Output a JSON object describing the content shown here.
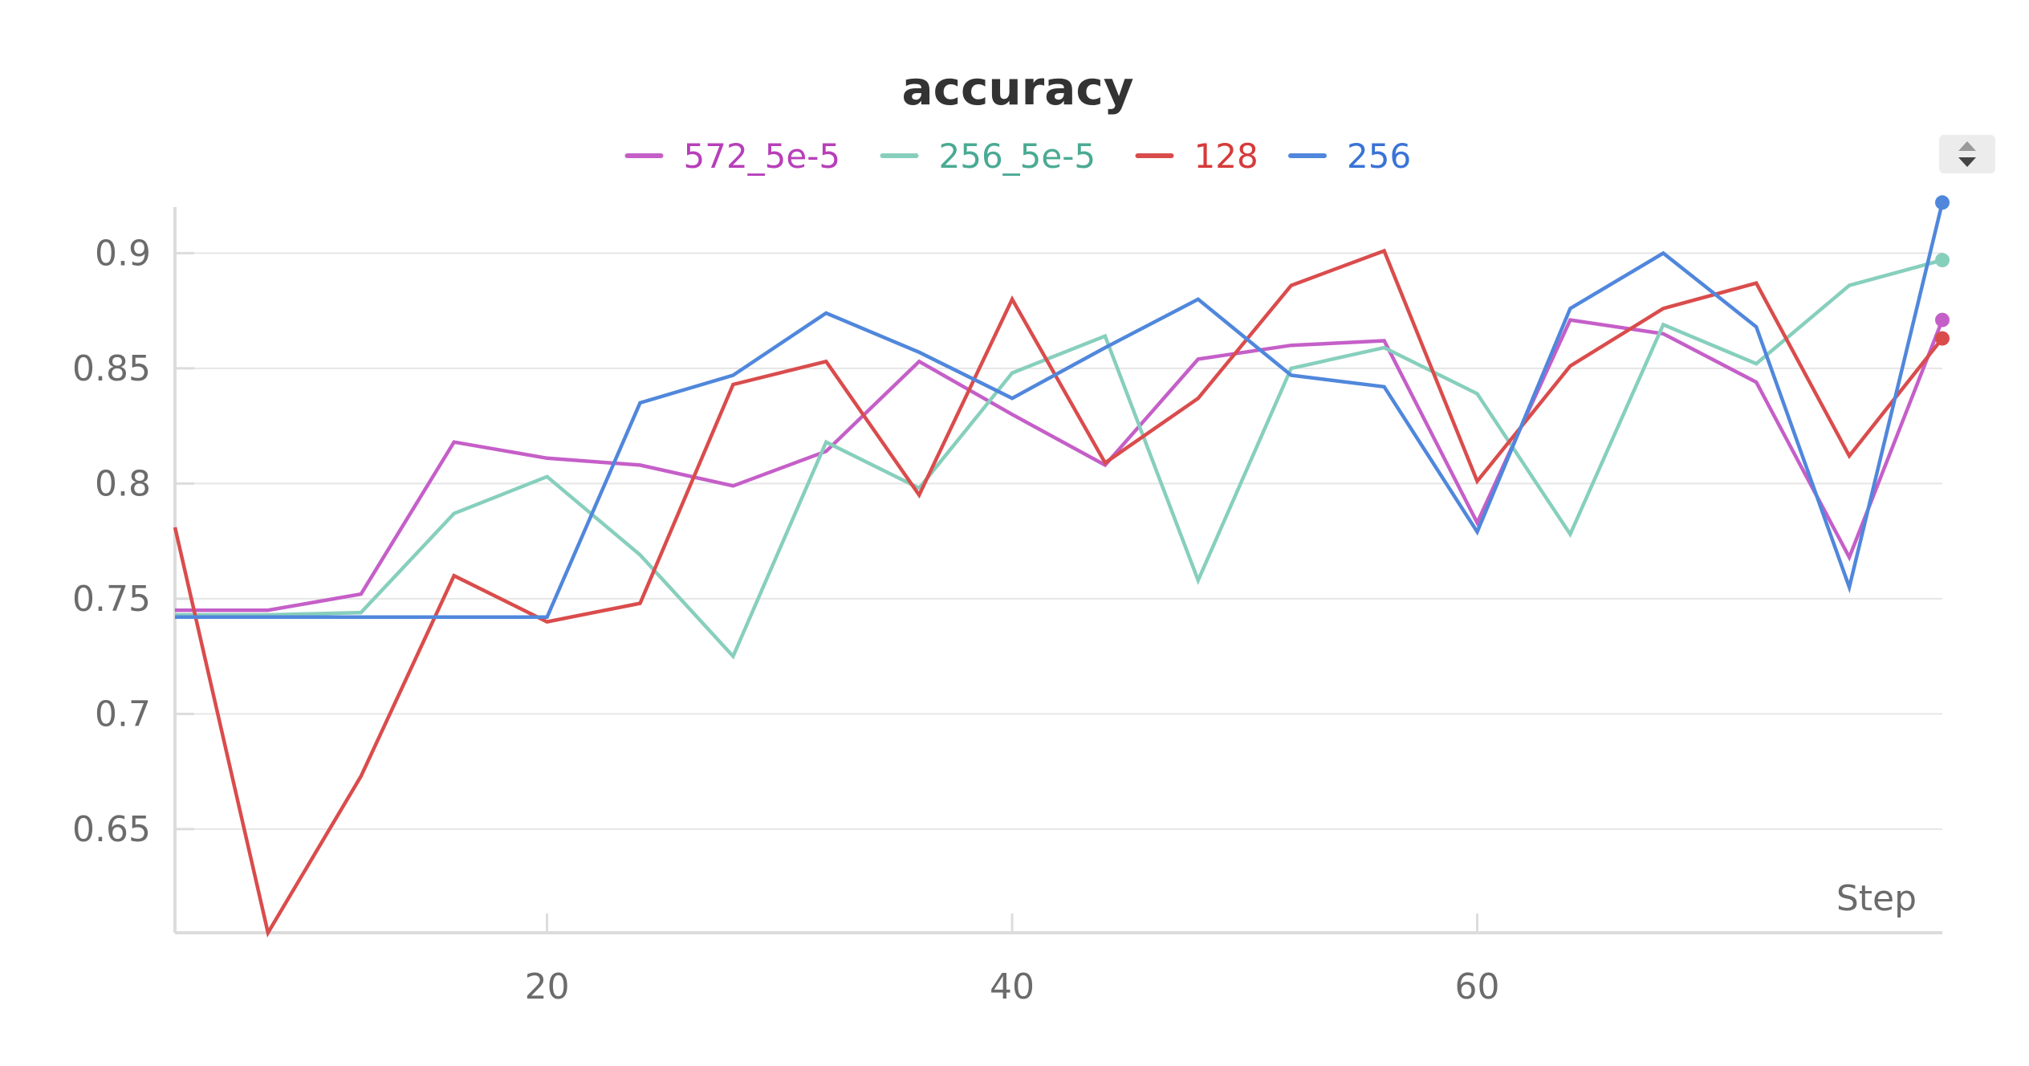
{
  "chart_data": {
    "type": "line",
    "title": "accuracy",
    "xlabel": "Step",
    "ylabel": "",
    "xlim": [
      4,
      80
    ],
    "ylim": [
      0.605,
      0.92
    ],
    "x_ticks": [
      20,
      40,
      60
    ],
    "y_ticks": [
      0.65,
      0.7,
      0.75,
      0.8,
      0.85,
      0.9
    ],
    "y_tick_labels": [
      "0.65",
      "0.7",
      "0.75",
      "0.8",
      "0.85",
      "0.9"
    ],
    "x_tick_labels": [
      "20",
      "40",
      "60"
    ],
    "grid": true,
    "legend_position": "top-center",
    "x": [
      4,
      8,
      12,
      16,
      20,
      24,
      28,
      32,
      36,
      40,
      44,
      48,
      52,
      56,
      60,
      64,
      68,
      72,
      76,
      80
    ],
    "series": [
      {
        "name": "572_5e-5",
        "color": "#c55fc8",
        "label_color": "#b73fb9",
        "values": [
          0.745,
          0.745,
          0.752,
          0.818,
          0.811,
          0.808,
          0.799,
          0.814,
          0.853,
          0.83,
          0.808,
          0.854,
          0.86,
          0.862,
          0.783,
          0.871,
          0.865,
          0.844,
          0.768,
          0.871
        ]
      },
      {
        "name": "256_5e-5",
        "color": "#87cfbd",
        "label_color": "#4aaa93",
        "values": [
          0.743,
          0.743,
          0.744,
          0.787,
          0.803,
          0.769,
          0.725,
          0.818,
          0.798,
          0.848,
          0.864,
          0.758,
          0.85,
          0.859,
          0.839,
          0.778,
          0.869,
          0.852,
          0.886,
          0.897
        ]
      },
      {
        "name": "128",
        "color": "#da4c4c",
        "label_color": "#d63a3a",
        "values": [
          0.781,
          0.605,
          0.673,
          0.76,
          0.74,
          0.748,
          0.843,
          0.853,
          0.795,
          0.88,
          0.809,
          0.837,
          0.886,
          0.901,
          0.801,
          0.851,
          0.876,
          0.887,
          0.812,
          0.863
        ]
      },
      {
        "name": "256",
        "color": "#5087dc",
        "label_color": "#3a73d6",
        "values": [
          0.742,
          0.742,
          0.742,
          0.742,
          0.742,
          0.835,
          0.847,
          0.874,
          0.857,
          0.837,
          0.859,
          0.88,
          0.847,
          0.842,
          0.779,
          0.876,
          0.9,
          0.868,
          0.755,
          0.922
        ]
      }
    ]
  },
  "ui": {
    "scroll_icon": "sort-arrows-icon"
  }
}
